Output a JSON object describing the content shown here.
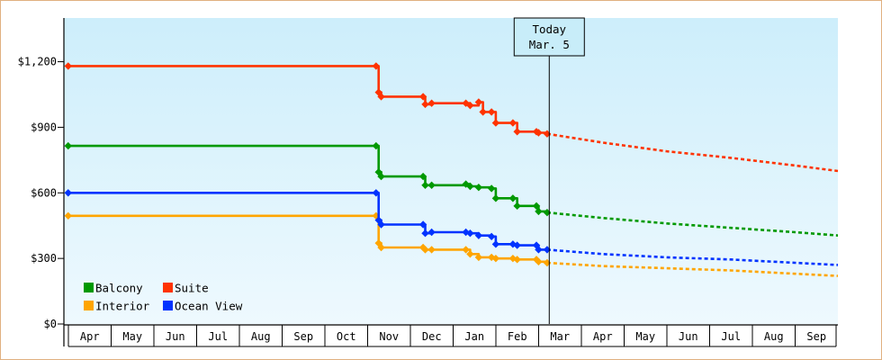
{
  "chart_data": {
    "type": "line",
    "title": "",
    "xlabel": "",
    "ylabel": "",
    "ylim": [
      0,
      1400
    ],
    "y_ticks": [
      0,
      300,
      600,
      900,
      1200
    ],
    "y_tick_labels": [
      "$0",
      "$300",
      "$600",
      "$900",
      "$1,200"
    ],
    "x_ticks": [
      "Apr",
      "May",
      "Jun",
      "Jul",
      "Aug",
      "Sep",
      "Oct",
      "Nov",
      "Dec",
      "Jan",
      "Feb",
      "Mar",
      "Apr",
      "May",
      "Jun",
      "Jul",
      "Aug",
      "Sep"
    ],
    "xlim": [
      -0.1,
      18.0
    ],
    "grid": false,
    "legend_position": "bottom-left",
    "today": {
      "line1": "Today",
      "line2": "Mar. 5",
      "x": 11.25
    },
    "series": [
      {
        "name": "Balcony",
        "color": "#009900",
        "points": [
          [
            0.0,
            815
          ],
          [
            7.2,
            815
          ],
          [
            7.26,
            695
          ],
          [
            7.32,
            675
          ],
          [
            8.3,
            675
          ],
          [
            8.35,
            635
          ],
          [
            8.5,
            635
          ],
          [
            9.3,
            640
          ],
          [
            9.4,
            630
          ],
          [
            9.6,
            625
          ],
          [
            9.9,
            620
          ],
          [
            10.0,
            575
          ],
          [
            10.4,
            575
          ],
          [
            10.5,
            540
          ],
          [
            10.95,
            540
          ],
          [
            11.0,
            515
          ],
          [
            11.2,
            510
          ]
        ],
        "forecast": [
          [
            11.2,
            510
          ],
          [
            12.5,
            485
          ],
          [
            14.0,
            460
          ],
          [
            15.5,
            440
          ],
          [
            17.0,
            420
          ],
          [
            18.0,
            405
          ]
        ]
      },
      {
        "name": "Suite",
        "color": "#ff3300",
        "points": [
          [
            0.0,
            1180
          ],
          [
            7.2,
            1180
          ],
          [
            7.26,
            1060
          ],
          [
            7.32,
            1040
          ],
          [
            8.3,
            1040
          ],
          [
            8.35,
            1005
          ],
          [
            8.5,
            1010
          ],
          [
            9.3,
            1010
          ],
          [
            9.4,
            1000
          ],
          [
            9.6,
            1015
          ],
          [
            9.7,
            970
          ],
          [
            9.9,
            970
          ],
          [
            10.0,
            920
          ],
          [
            10.4,
            920
          ],
          [
            10.5,
            880
          ],
          [
            10.95,
            880
          ],
          [
            11.0,
            875
          ],
          [
            11.2,
            870
          ]
        ],
        "forecast": [
          [
            11.2,
            870
          ],
          [
            12.5,
            830
          ],
          [
            14.0,
            790
          ],
          [
            15.5,
            760
          ],
          [
            17.0,
            725
          ],
          [
            18.0,
            700
          ]
        ]
      },
      {
        "name": "Interior",
        "color": "#ffa500",
        "points": [
          [
            0.0,
            495
          ],
          [
            7.2,
            495
          ],
          [
            7.26,
            370
          ],
          [
            7.32,
            350
          ],
          [
            8.3,
            350
          ],
          [
            8.35,
            340
          ],
          [
            8.5,
            340
          ],
          [
            9.3,
            340
          ],
          [
            9.4,
            320
          ],
          [
            9.6,
            305
          ],
          [
            9.9,
            305
          ],
          [
            10.0,
            300
          ],
          [
            10.4,
            300
          ],
          [
            10.5,
            295
          ],
          [
            10.95,
            295
          ],
          [
            11.0,
            285
          ],
          [
            11.2,
            280
          ]
        ],
        "forecast": [
          [
            11.2,
            280
          ],
          [
            12.5,
            265
          ],
          [
            14.0,
            255
          ],
          [
            15.5,
            245
          ],
          [
            17.0,
            230
          ],
          [
            18.0,
            220
          ]
        ]
      },
      {
        "name": "Ocean View",
        "color": "#0033ff",
        "points": [
          [
            0.0,
            600
          ],
          [
            7.2,
            600
          ],
          [
            7.26,
            475
          ],
          [
            7.32,
            455
          ],
          [
            8.3,
            455
          ],
          [
            8.35,
            415
          ],
          [
            8.5,
            420
          ],
          [
            9.3,
            420
          ],
          [
            9.4,
            415
          ],
          [
            9.6,
            405
          ],
          [
            9.9,
            400
          ],
          [
            10.0,
            365
          ],
          [
            10.4,
            365
          ],
          [
            10.5,
            360
          ],
          [
            10.95,
            360
          ],
          [
            11.0,
            340
          ],
          [
            11.2,
            340
          ]
        ],
        "forecast": [
          [
            11.2,
            340
          ],
          [
            12.5,
            320
          ],
          [
            14.0,
            305
          ],
          [
            15.5,
            295
          ],
          [
            17.0,
            280
          ],
          [
            18.0,
            270
          ]
        ]
      }
    ],
    "legend_order": [
      "Balcony",
      "Suite",
      "Interior",
      "Ocean View"
    ]
  }
}
